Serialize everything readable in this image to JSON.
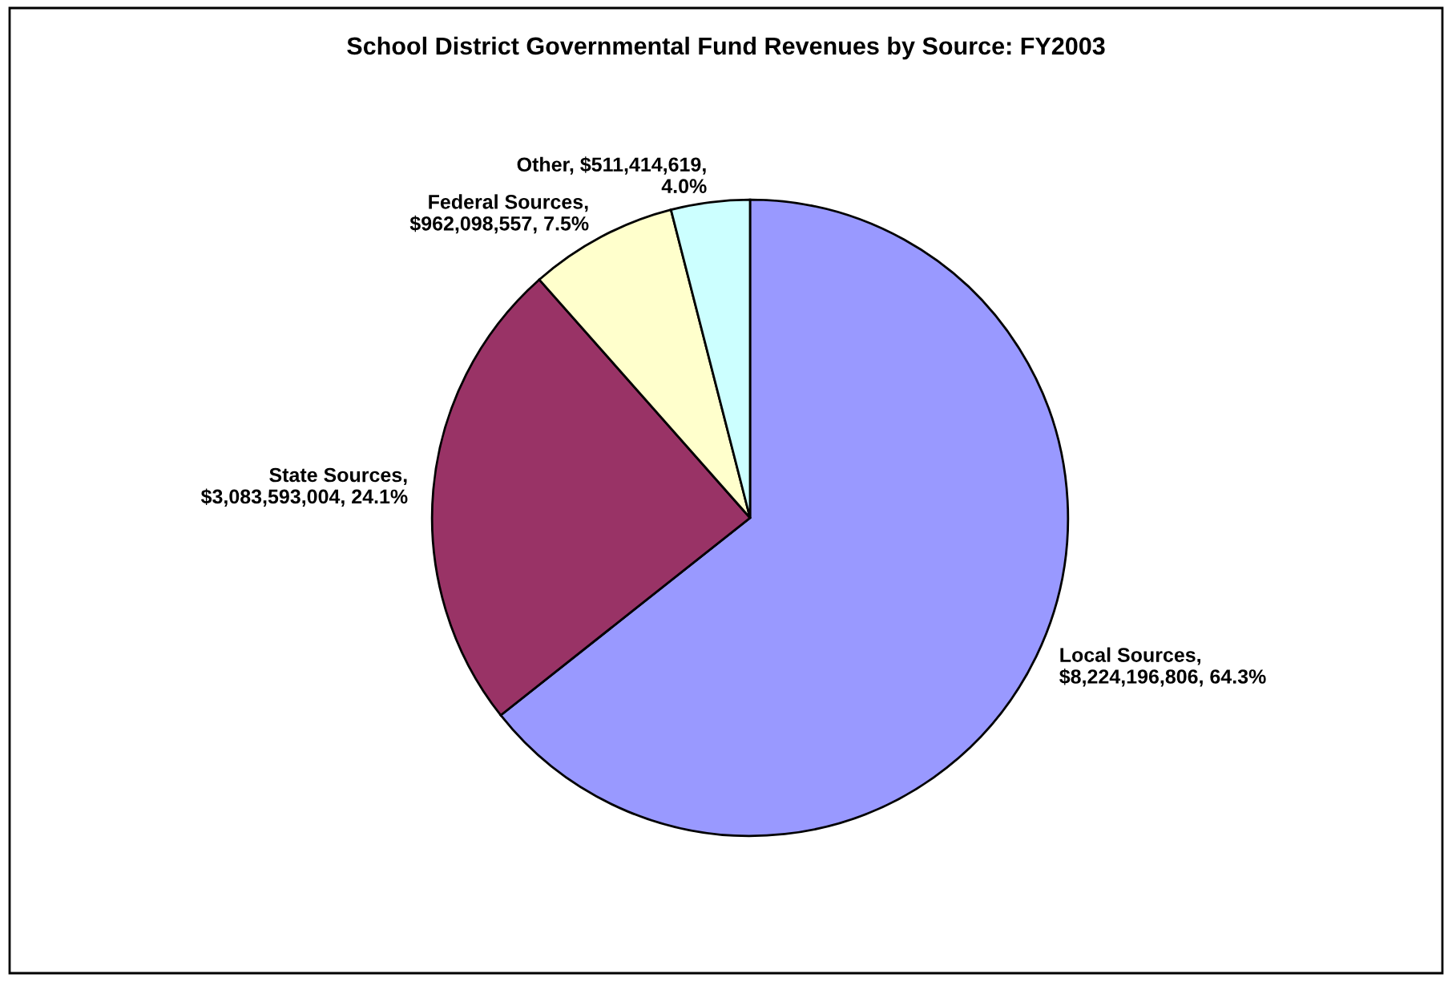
{
  "chart_data": {
    "type": "pie",
    "title": "School District Governmental Fund Revenues by Source: FY2003",
    "categories": [
      "Local Sources",
      "State Sources",
      "Federal Sources",
      "Other"
    ],
    "values": [
      8224196806,
      3083593004,
      962098557,
      511414619
    ],
    "colors": [
      "#9999ff",
      "#993366",
      "#ffffcc",
      "#ccffff"
    ],
    "value_labels": [
      ",\n$8,224,196,806, 64.3%",
      ",\n$3,083,593,004, 24.1%",
      ",\n$962,098,557, 7.5%",
      ", $511,414,619,\n4.0%"
    ],
    "legend": false
  }
}
